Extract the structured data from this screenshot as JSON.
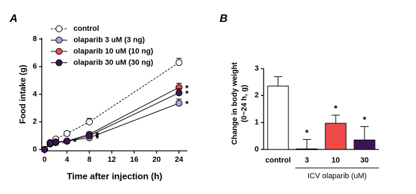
{
  "chart_data": [
    {
      "type": "line",
      "panel_label": "A",
      "xlabel": "Time after injection (h)",
      "ylabel": "Food intake (g)",
      "x": [
        0,
        1,
        2,
        4,
        8,
        24
      ],
      "xlim": [
        -0.5,
        25.5
      ],
      "xticks": [
        0,
        4,
        8,
        12,
        16,
        20,
        24
      ],
      "ylim": [
        0,
        8
      ],
      "yticks": [
        0,
        2,
        4,
        6,
        8
      ],
      "series": [
        {
          "name": "control",
          "color": "#ffffff",
          "line_style": "dashed",
          "values": [
            0,
            0.5,
            0.75,
            1.15,
            2.0,
            6.3
          ],
          "errors": [
            0.05,
            0.1,
            0.1,
            0.15,
            0.25,
            0.3
          ],
          "annotations": [
            null,
            null,
            null,
            null,
            null,
            null
          ]
        },
        {
          "name": "olaparib 3 uM (3 ng)",
          "color": "#9aa8ec",
          "line_style": "solid",
          "values": [
            0,
            0.4,
            0.5,
            0.6,
            0.85,
            3.35
          ],
          "errors": [
            0.05,
            0.05,
            0.05,
            0.1,
            0.1,
            0.3
          ],
          "annotations": [
            null,
            null,
            "*",
            "*",
            "*",
            "*"
          ]
        },
        {
          "name": "olaparib 10 uM (10 ng)",
          "color": "#ee4a4a",
          "line_style": "solid",
          "values": [
            0,
            0.4,
            0.5,
            0.6,
            1.1,
            4.5
          ],
          "errors": [
            0.05,
            0.05,
            0.05,
            0.1,
            0.15,
            0.3
          ],
          "annotations": [
            null,
            null,
            null,
            null,
            "*",
            "*"
          ]
        },
        {
          "name": "olaparib 30 uM (30 ng)",
          "color": "#3b1655",
          "line_style": "solid",
          "values": [
            0,
            0.45,
            0.55,
            0.6,
            1.0,
            4.1
          ],
          "errors": [
            0.05,
            0.05,
            0.05,
            0.1,
            0.1,
            0.3
          ],
          "annotations": [
            null,
            null,
            null,
            null,
            "*",
            "*"
          ]
        }
      ]
    },
    {
      "type": "bar",
      "panel_label": "B",
      "ylabel": [
        "Change in body weight",
        "(0~24 h, g)"
      ],
      "group_label": "ICV olaparib (uM)",
      "categories": [
        "control",
        "3",
        "10",
        "30"
      ],
      "values": [
        2.35,
        0.02,
        0.97,
        0.35
      ],
      "errors": [
        0.35,
        0.35,
        0.3,
        0.5
      ],
      "colors": [
        "#ffffff",
        "#9aa8ec",
        "#ee4a4a",
        "#3b1655"
      ],
      "annotations": [
        null,
        "*",
        "*",
        "*"
      ],
      "ylim": [
        0,
        3
      ],
      "yticks": [
        0,
        1,
        2,
        3
      ]
    }
  ]
}
